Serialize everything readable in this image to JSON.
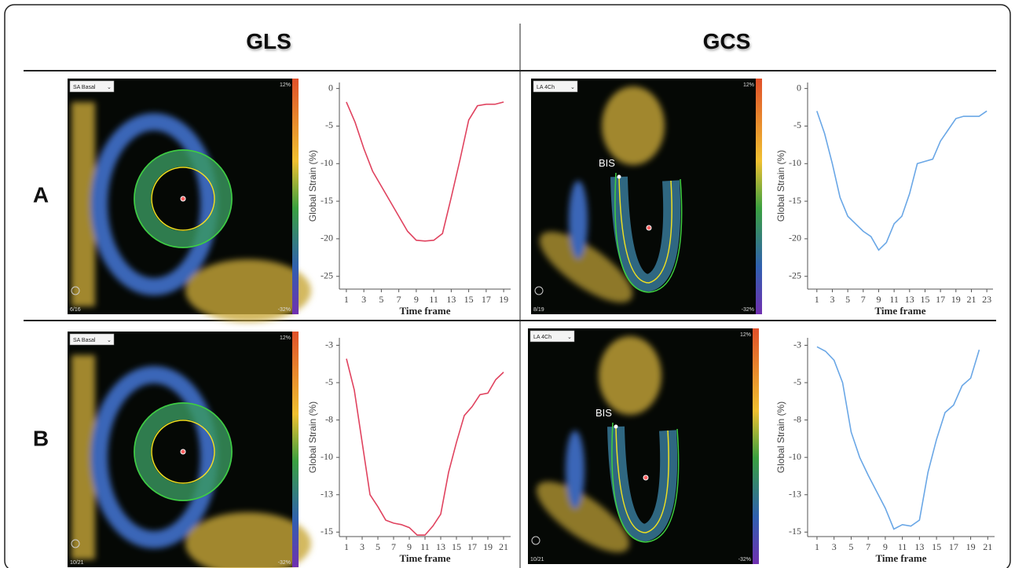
{
  "figure": {
    "columns": [
      "GLS",
      "GCS"
    ],
    "rows": [
      "A",
      "B"
    ],
    "panels": [
      {
        "menu": "SA Basal",
        "scale_max": "12%",
        "scale_min": "-32%",
        "frame": "6/16"
      },
      {
        "menu": "LA 4Ch",
        "scale_max": "12%",
        "scale_min": "-32%",
        "frame": "8/19",
        "marker": "BIS"
      },
      {
        "menu": "SA Basal",
        "scale_max": "12%",
        "scale_min": "-32%",
        "frame": "10/21"
      },
      {
        "menu": "LA 4Ch",
        "scale_max": "12%",
        "scale_min": "-32%",
        "frame": "10/21",
        "marker": "BIS"
      }
    ]
  },
  "chart_data": [
    {
      "type": "line",
      "x_label": "Time frame",
      "y_label": "Global Strain (%)",
      "color": "#e0435f",
      "x": [
        1,
        2,
        3,
        4,
        5,
        6,
        7,
        8,
        9,
        10,
        11,
        12,
        13,
        14,
        15,
        16,
        17,
        18,
        19
      ],
      "values": [
        -1.8,
        -4.5,
        -8,
        -11,
        -13,
        -15,
        -17,
        -19,
        -20.2,
        -20.3,
        -20.2,
        -19.3,
        -14.5,
        -9.5,
        -4.2,
        -2.3,
        -2.1,
        -2.1,
        -1.8
      ],
      "xlim": [
        0.2,
        19.8
      ],
      "ylim": [
        -26.7,
        0.8
      ],
      "xticks": [
        1,
        3,
        5,
        7,
        9,
        11,
        13,
        15,
        17,
        19
      ],
      "yticks": [
        0,
        -5,
        -10,
        -15,
        -20,
        -25
      ]
    },
    {
      "type": "line",
      "x_label": "Time frame",
      "y_label": "Global Strain (%)",
      "color": "#6aa7e6",
      "x": [
        1,
        2,
        3,
        4,
        5,
        6,
        7,
        8,
        9,
        10,
        11,
        12,
        13,
        14,
        15,
        16,
        17,
        18,
        19,
        20,
        21,
        22,
        23
      ],
      "values": [
        -3,
        -6,
        -10,
        -14.5,
        -17,
        -18,
        -19,
        -19.7,
        -21.5,
        -20.5,
        -18,
        -17,
        -14,
        -10,
        -9.7,
        -9.4,
        -7,
        -5.5,
        -4,
        -3.7,
        -3.7,
        -3.7,
        -3
      ],
      "xlim": [
        -0.2,
        23.8
      ],
      "ylim": [
        -26.7,
        0.8
      ],
      "xticks": [
        1,
        3,
        5,
        7,
        9,
        11,
        13,
        15,
        17,
        19,
        21,
        23
      ],
      "yticks": [
        0,
        -5,
        -10,
        -15,
        -20,
        -25
      ]
    },
    {
      "type": "line",
      "x_label": "Time frame",
      "y_label": "Global Strain (%)",
      "color": "#e0435f",
      "x": [
        1,
        2,
        3,
        4,
        5,
        6,
        7,
        8,
        9,
        10,
        11,
        12,
        13,
        14,
        15,
        16,
        17,
        18,
        19,
        20,
        21
      ],
      "values": [
        -3.4,
        -5.5,
        -9,
        -12.5,
        -13.3,
        -14.2,
        -14.4,
        -14.5,
        -14.7,
        -15.2,
        -15.2,
        -14.6,
        -13.8,
        -11,
        -9,
        -7.2,
        -6.6,
        -5.8,
        -5.7,
        -4.8,
        -4.3
      ],
      "xlim": [
        0.1,
        21.9
      ],
      "ylim": [
        -15.3,
        -2
      ],
      "xticks": [
        1,
        3,
        5,
        7,
        9,
        11,
        13,
        15,
        17,
        19,
        21
      ],
      "yticks": [
        {
          "value": -2.5,
          "label": "-3"
        },
        -5,
        {
          "value": -7.5,
          "label": "-8"
        },
        -10,
        {
          "value": -12.5,
          "label": "-13"
        },
        -15
      ]
    },
    {
      "type": "line",
      "x_label": "Time frame",
      "y_label": "Global Strain (%)",
      "color": "#6aa7e6",
      "x": [
        1,
        2,
        3,
        4,
        5,
        6,
        7,
        8,
        9,
        10,
        11,
        12,
        13,
        14,
        15,
        16,
        17,
        18,
        19,
        20
      ],
      "values": [
        -2.6,
        -2.9,
        -3.5,
        -5,
        -8.3,
        -10,
        -11.2,
        -12.3,
        -13.4,
        -14.8,
        -14.5,
        -14.6,
        -14.2,
        -11,
        -8.8,
        -7,
        -6.5,
        -5.2,
        -4.7,
        -2.8
      ],
      "xlim": [
        -0.1,
        21.8
      ],
      "ylim": [
        -15.3,
        -2
      ],
      "xticks": [
        1,
        3,
        5,
        7,
        9,
        11,
        13,
        15,
        17,
        19,
        21
      ],
      "yticks": [
        {
          "value": -2.5,
          "label": "-3"
        },
        -5,
        {
          "value": -7.5,
          "label": "-8"
        },
        -10,
        {
          "value": -12.5,
          "label": "-13"
        },
        -15
      ]
    }
  ]
}
